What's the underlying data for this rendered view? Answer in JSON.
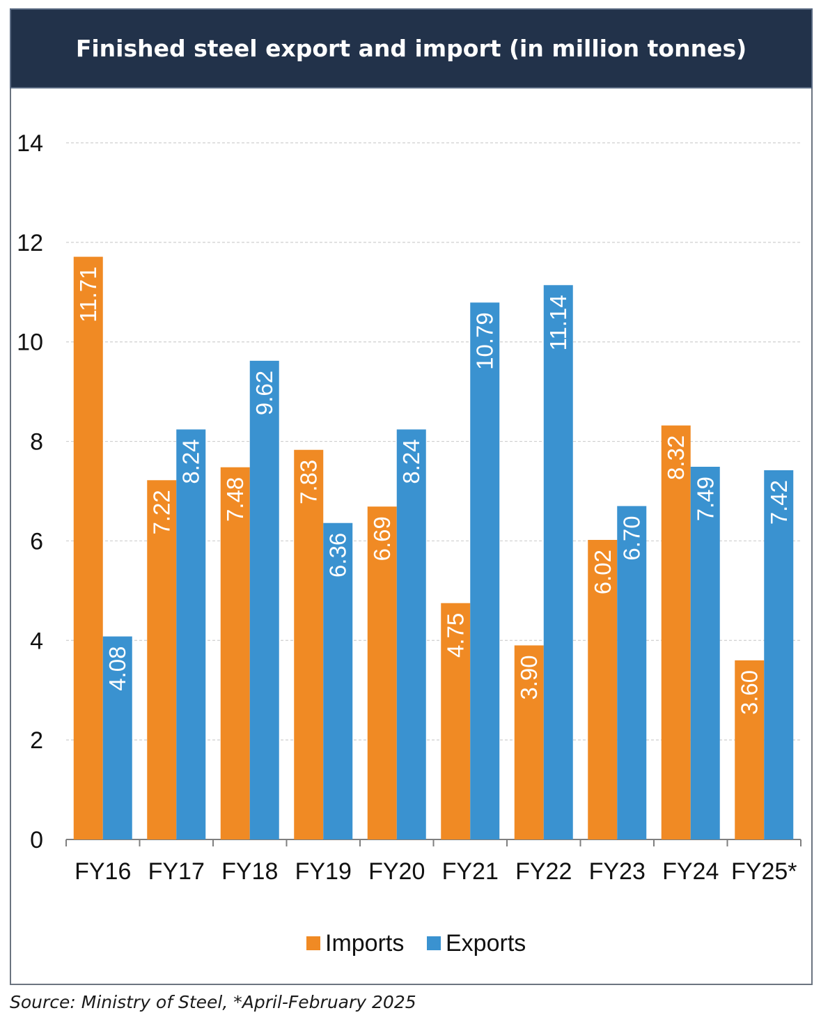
{
  "title": "Finished steel export and import (in million tonnes)",
  "source": "Source: Ministry of Steel, *April-February 2025",
  "colors": {
    "imports": "#f08a24",
    "exports": "#3a92d0",
    "title_bg": "#22324a"
  },
  "chart_data": {
    "type": "bar",
    "title": "Finished steel export and import (in million tonnes)",
    "categories": [
      "FY16",
      "FY17",
      "FY18",
      "FY19",
      "FY20",
      "FY21",
      "FY22",
      "FY23",
      "FY24",
      "FY25*"
    ],
    "series": [
      {
        "name": "Imports",
        "values": [
          11.71,
          7.22,
          7.48,
          7.83,
          6.69,
          4.75,
          3.9,
          6.02,
          8.32,
          3.6
        ]
      },
      {
        "name": "Exports",
        "values": [
          4.08,
          8.24,
          9.62,
          6.36,
          8.24,
          10.79,
          11.14,
          6.7,
          7.49,
          7.42
        ]
      }
    ],
    "data_labels": {
      "Imports": [
        "11.71",
        "7.22",
        "7.48",
        "7.83",
        "6.69",
        "4.75",
        "3.90",
        "6.02",
        "8.32",
        "3.60"
      ],
      "Exports": [
        "4.08",
        "8.24",
        "9.62",
        "6.36",
        "8.24",
        "10.79",
        "11.14",
        "6.70",
        "7.49",
        "7.42"
      ]
    },
    "ylim": [
      0,
      14
    ],
    "yticks": [
      "0",
      "2",
      "4",
      "6",
      "8",
      "10",
      "12",
      "14"
    ],
    "grid": true,
    "legend": "bottom",
    "xlabel": "",
    "ylabel": ""
  }
}
